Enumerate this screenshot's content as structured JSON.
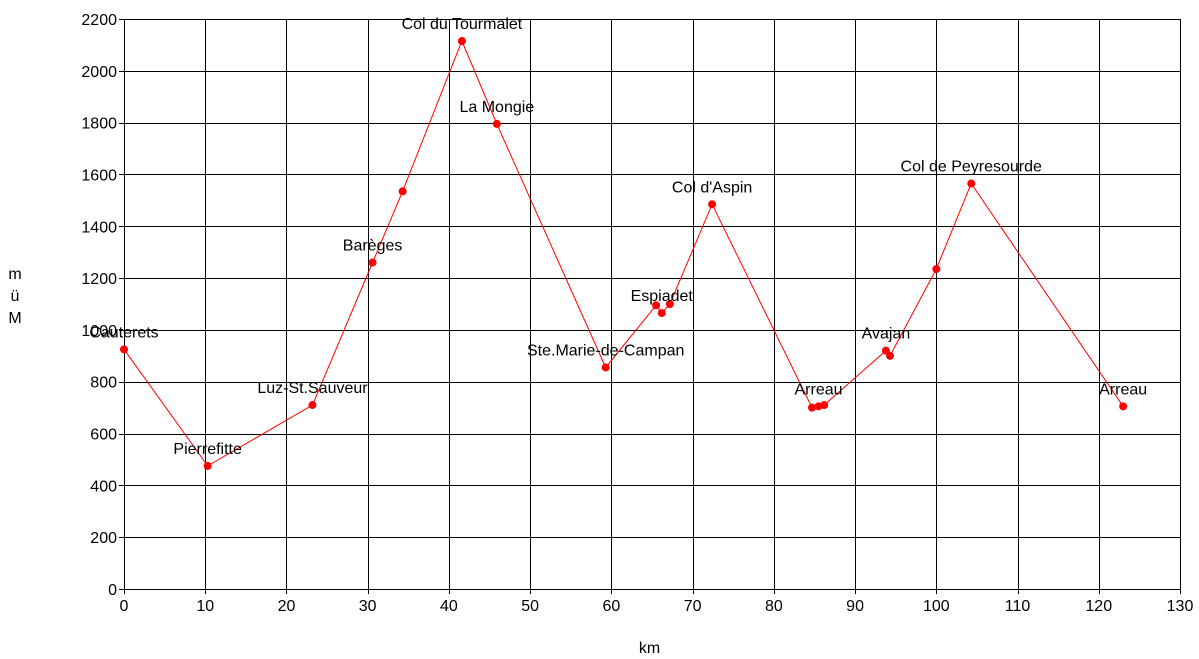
{
  "chart_data": {
    "type": "line",
    "title": "",
    "xlabel": "km",
    "ylabel_chars": [
      "m",
      "ü",
      "M"
    ],
    "xlim": [
      0,
      130
    ],
    "ylim": [
      0,
      2200
    ],
    "x_ticks": [
      0,
      10,
      20,
      30,
      40,
      50,
      60,
      70,
      80,
      90,
      100,
      110,
      120,
      130
    ],
    "y_ticks": [
      0,
      200,
      400,
      600,
      800,
      1000,
      1200,
      1400,
      1600,
      1800,
      2000,
      2200
    ],
    "grid": true,
    "legend": "none",
    "line_color": "#ff0000",
    "marker_color": "#ff0000",
    "series": [
      {
        "points": [
          {
            "x": 0,
            "y": 925
          },
          {
            "x": 10.3,
            "y": 475
          },
          {
            "x": 23.2,
            "y": 710
          },
          {
            "x": 30.6,
            "y": 1260
          },
          {
            "x": 34.3,
            "y": 1535
          },
          {
            "x": 41.6,
            "y": 2115
          },
          {
            "x": 45.9,
            "y": 1795
          },
          {
            "x": 59.3,
            "y": 855
          },
          {
            "x": 65.5,
            "y": 1095
          },
          {
            "x": 66.2,
            "y": 1065
          },
          {
            "x": 67.2,
            "y": 1100
          },
          {
            "x": 72.4,
            "y": 1485
          },
          {
            "x": 84.7,
            "y": 700
          },
          {
            "x": 85.5,
            "y": 705
          },
          {
            "x": 86.2,
            "y": 710
          },
          {
            "x": 93.8,
            "y": 920
          },
          {
            "x": 94.3,
            "y": 900
          },
          {
            "x": 100.0,
            "y": 1235
          },
          {
            "x": 104.3,
            "y": 1565
          },
          {
            "x": 123.0,
            "y": 705
          }
        ]
      }
    ],
    "annotations": [
      {
        "text": "Cauterets",
        "x": 0,
        "y": 925
      },
      {
        "text": "Pierrefitte",
        "x": 10.3,
        "y": 475
      },
      {
        "text": "Luz-St.Sauveur",
        "x": 23.2,
        "y": 710
      },
      {
        "text": "Barèges",
        "x": 30.6,
        "y": 1260
      },
      {
        "text": "Col du Tourmalet",
        "x": 41.6,
        "y": 2115
      },
      {
        "text": "La Mongie",
        "x": 45.9,
        "y": 1795
      },
      {
        "text": "Ste.Marie-de-Campan",
        "x": 59.3,
        "y": 855
      },
      {
        "text": "Espiadet",
        "x": 66.2,
        "y": 1065
      },
      {
        "text": "Col d'Aspin",
        "x": 72.4,
        "y": 1485
      },
      {
        "text": "Arreau",
        "x": 85.5,
        "y": 705
      },
      {
        "text": "Avajan",
        "x": 93.8,
        "y": 920
      },
      {
        "text": "Col de Peyresourde",
        "x": 104.3,
        "y": 1565
      },
      {
        "text": "Arreau",
        "x": 123.0,
        "y": 705
      }
    ]
  }
}
